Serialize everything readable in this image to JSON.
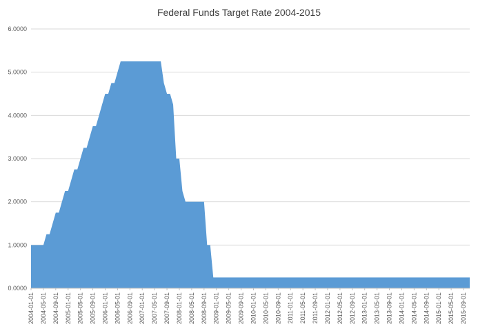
{
  "chart_data": {
    "type": "area",
    "title": "Federal Funds Target Rate 2004-2015",
    "xlabel": "",
    "ylabel": "",
    "ylim": [
      0,
      6
    ],
    "y_ticks": [
      "0.0000",
      "1.0000",
      "2.0000",
      "3.0000",
      "4.0000",
      "5.0000",
      "6.0000"
    ],
    "x_ticks": [
      "2004-01-01",
      "2004-05-01",
      "2004-09-01",
      "2005-01-01",
      "2005-05-01",
      "2005-09-01",
      "2006-01-01",
      "2006-05-01",
      "2006-09-01",
      "2007-01-01",
      "2007-05-01",
      "2007-09-01",
      "2008-01-01",
      "2008-05-01",
      "2008-09-01",
      "2009-01-01",
      "2009-05-01",
      "2009-09-01",
      "2010-01-01",
      "2010-05-01",
      "2010-09-01",
      "2011-01-01",
      "2011-05-01",
      "2011-09-01",
      "2012-01-01",
      "2012-05-01",
      "2012-09-01",
      "2013-01-01",
      "2013-05-01",
      "2013-09-01",
      "2014-01-01",
      "2014-05-01",
      "2014-09-01",
      "2015-01-01",
      "2015-05-01",
      "2015-09-01"
    ],
    "grid": true,
    "legend": "none",
    "colors": {
      "fill": "#5b9bd5",
      "grid": "#d9d9d9",
      "axis": "#bfbfbf"
    },
    "series": [
      {
        "x": [
          "2004-01-01",
          "2004-05-01",
          "2004-06-01",
          "2004-07-01",
          "2004-08-01",
          "2004-09-01",
          "2004-10-01",
          "2004-11-01",
          "2004-12-01",
          "2005-01-01",
          "2005-02-01",
          "2005-03-01",
          "2005-04-01",
          "2005-05-01",
          "2005-06-01",
          "2005-07-01",
          "2005-08-01",
          "2005-09-01",
          "2005-10-01",
          "2005-11-01",
          "2005-12-01",
          "2006-01-01",
          "2006-02-01",
          "2006-03-01",
          "2006-04-01",
          "2006-05-01",
          "2006-06-01",
          "2006-07-01",
          "2007-07-01",
          "2007-08-01",
          "2007-09-01",
          "2007-10-01",
          "2007-11-01",
          "2007-12-01",
          "2008-01-01",
          "2008-02-01",
          "2008-03-01",
          "2008-04-01",
          "2008-05-01",
          "2008-09-01",
          "2008-10-01",
          "2008-11-01",
          "2008-12-01",
          "2015-11-01"
        ],
        "values": [
          1.0,
          1.0,
          1.25,
          1.25,
          1.5,
          1.75,
          1.75,
          2.0,
          2.25,
          2.25,
          2.5,
          2.75,
          2.75,
          3.0,
          3.25,
          3.25,
          3.5,
          3.75,
          3.75,
          4.0,
          4.25,
          4.5,
          4.5,
          4.75,
          4.75,
          5.0,
          5.25,
          5.25,
          5.25,
          4.75,
          4.5,
          4.5,
          4.25,
          3.0,
          3.0,
          2.25,
          2.0,
          2.0,
          2.0,
          2.0,
          1.0,
          1.0,
          0.25,
          0.25
        ]
      }
    ]
  }
}
